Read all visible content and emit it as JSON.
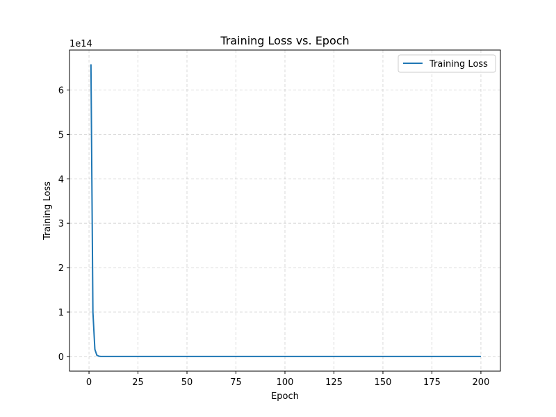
{
  "chart_data": {
    "type": "line",
    "title": "Training Loss vs. Epoch",
    "xlabel": "Epoch",
    "ylabel": "Training Loss",
    "y_offset_label": "1e14",
    "xlim": [
      -9.95,
      209.95
    ],
    "ylim": [
      -33000000000000.0,
      690000000000000.0
    ],
    "xticks": [
      0,
      25,
      50,
      75,
      100,
      125,
      150,
      175,
      200
    ],
    "xtick_labels": [
      "0",
      "25",
      "50",
      "75",
      "100",
      "125",
      "150",
      "175",
      "200"
    ],
    "yticks": [
      0,
      100000000000000.0,
      200000000000000.0,
      300000000000000.0,
      400000000000000.0,
      500000000000000.0,
      600000000000000.0
    ],
    "ytick_labels": [
      "0",
      "1",
      "2",
      "3",
      "4",
      "5",
      "6"
    ],
    "grid": true,
    "legend_position": "upper right",
    "series": [
      {
        "name": "Training Loss",
        "color": "#1f77b4",
        "x": [
          1,
          2,
          3,
          4,
          5,
          6,
          8,
          10,
          15,
          20,
          30,
          50,
          75,
          100,
          125,
          150,
          175,
          200
        ],
        "y": [
          658000000000000.0,
          100000000000000.0,
          16000000000000.0,
          3000000000000.0,
          600000000000.0,
          120000000000.0,
          10000000000.0,
          1000000000.0,
          100000000.0,
          10000000.0,
          1000000.0,
          100000.0,
          10000.0,
          5000.0,
          2000.0,
          1000.0,
          500.0,
          200.0
        ]
      }
    ]
  }
}
